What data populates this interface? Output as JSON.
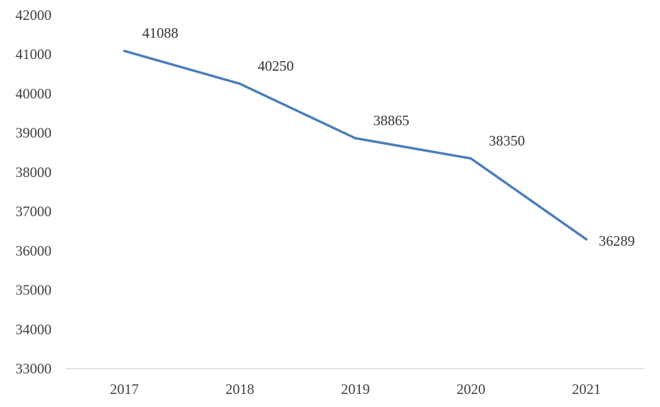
{
  "chart_data": {
    "type": "line",
    "title": "",
    "xlabel": "",
    "ylabel": "",
    "categories": [
      "2017",
      "2018",
      "2019",
      "2020",
      "2021"
    ],
    "series": [
      {
        "values": [
          41088,
          40250,
          38865,
          38350,
          36289
        ]
      }
    ],
    "data_labels": [
      "41088",
      "40250",
      "38865",
      "38350",
      "36289"
    ],
    "ylim": [
      33000,
      42000
    ],
    "yticks": [
      "33000",
      "34000",
      "35000",
      "36000",
      "37000",
      "38000",
      "39000",
      "40000",
      "41000",
      "42000"
    ],
    "grid": false,
    "legend": "none",
    "colors": {
      "line": "#4a7ebb",
      "axis": "#d9d9d9",
      "text": "#404040"
    }
  }
}
